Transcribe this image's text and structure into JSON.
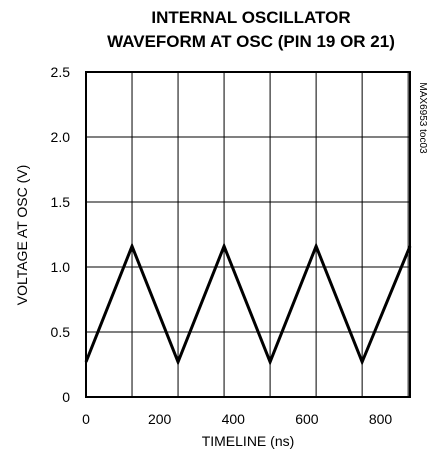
{
  "chart_data": {
    "type": "line",
    "title": [
      "INTERNAL OSCILLATOR",
      "WAVEFORM AT OSC (PIN 19 OR 21)"
    ],
    "xlabel": "TIMELINE (ns)",
    "ylabel": "VOLTAGE AT OSC (V)",
    "xlim": [
      0,
      880
    ],
    "ylim": [
      0,
      2.5
    ],
    "x_ticks": [
      0,
      200,
      400,
      600,
      800
    ],
    "y_ticks": [
      "0",
      "0.5",
      "1.0",
      "1.5",
      "2.0",
      "2.5"
    ],
    "grid": true,
    "annotation": "MAX6953 toc03",
    "series": [
      {
        "x": [
          0,
          125,
          250,
          375,
          500,
          625,
          750,
          880
        ],
        "y": [
          0.27,
          1.16,
          0.27,
          1.16,
          0.27,
          1.16,
          0.27,
          1.16
        ]
      }
    ],
    "colors": {
      "line": "#000000",
      "grid": "#000000"
    }
  }
}
